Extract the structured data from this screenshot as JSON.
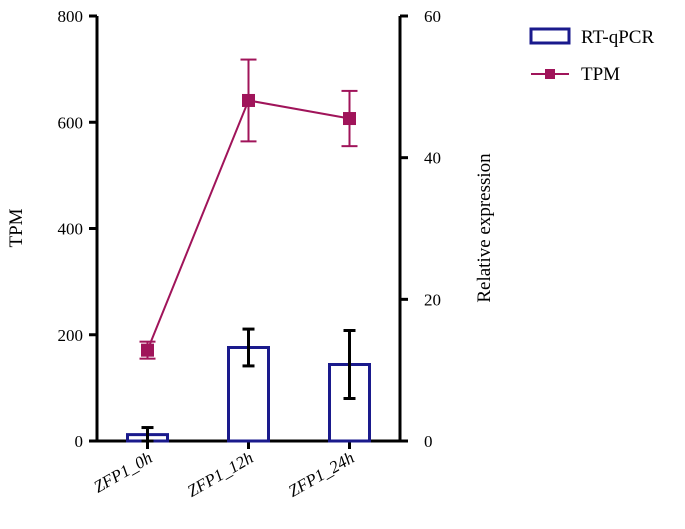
{
  "chart_data": {
    "type": "bar+line",
    "title": "",
    "categories": [
      "ZFP1_0h",
      "ZFP1_12h",
      "ZFP1_24h"
    ],
    "xlabel": "",
    "left_axis": {
      "label": "TPM",
      "ylim": [
        0,
        800
      ],
      "ticks": [
        "0",
        "200",
        "400",
        "600",
        "800"
      ]
    },
    "right_axis": {
      "label": "Relative  expression",
      "ylim": [
        0,
        60
      ],
      "ticks": [
        "0",
        "20",
        "40",
        "60"
      ]
    },
    "series": [
      {
        "name": "RT-qPCR",
        "kind": "bar",
        "axis": "right",
        "values": [
          0.9,
          13.2,
          10.8
        ],
        "error": [
          1.0,
          2.6,
          4.8
        ],
        "color": "#1a1a8c"
      },
      {
        "name": "TPM",
        "kind": "line",
        "axis": "left",
        "values": [
          171,
          641,
          607
        ],
        "error": [
          16,
          77,
          52
        ],
        "color": "#a0145a"
      }
    ],
    "legend_position": "top-right"
  }
}
